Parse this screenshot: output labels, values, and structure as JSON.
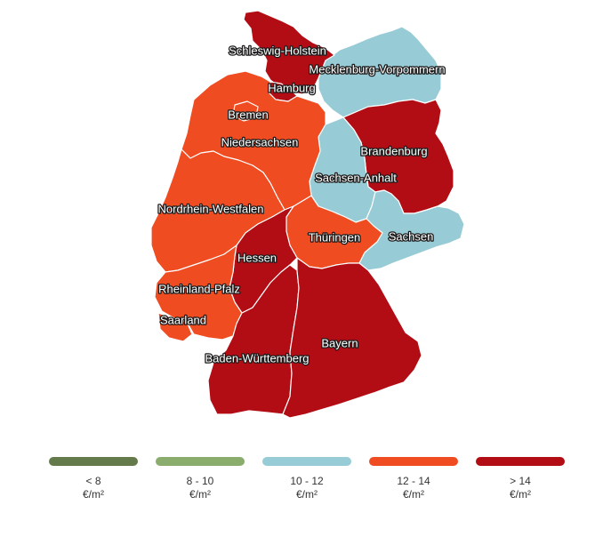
{
  "colors": {
    "lt8": "#647a4b",
    "8to10": "#8aad6e",
    "10to12": "#97cbd5",
    "12to14": "#f04c22",
    "gt14": "#b20d14"
  },
  "states": [
    {
      "id": "SH",
      "label": "Schleswig-Holstein",
      "cls": "gt14"
    },
    {
      "id": "HH",
      "label": "Hamburg",
      "cls": "gt14"
    },
    {
      "id": "MV",
      "label": "Mecklenburg-Vorpommern",
      "cls": "10to12"
    },
    {
      "id": "HB",
      "label": "Bremen",
      "cls": "12to14"
    },
    {
      "id": "NI",
      "label": "Niedersachsen",
      "cls": "12to14"
    },
    {
      "id": "BB",
      "label": "Brandenburg",
      "cls": "gt14"
    },
    {
      "id": "ST",
      "label": "Sachsen-Anhalt",
      "cls": "10to12"
    },
    {
      "id": "NW",
      "label": "Nordrhein-Westfalen",
      "cls": "12to14"
    },
    {
      "id": "TH",
      "label": "Thüringen",
      "cls": "12to14"
    },
    {
      "id": "SN",
      "label": "Sachsen",
      "cls": "10to12"
    },
    {
      "id": "HE",
      "label": "Hessen",
      "cls": "gt14"
    },
    {
      "id": "RP",
      "label": "Rheinland-Pfalz",
      "cls": "12to14"
    },
    {
      "id": "SL",
      "label": "Saarland",
      "cls": "12to14"
    },
    {
      "id": "BW",
      "label": "Baden-Württemberg",
      "cls": "gt14"
    },
    {
      "id": "BY",
      "label": "Bayern",
      "cls": "gt14"
    }
  ],
  "legend": [
    {
      "range": "< 8",
      "unit": "€/m²",
      "color": "#647a4b"
    },
    {
      "range": "8 - 10",
      "unit": "€/m²",
      "color": "#8aad6e"
    },
    {
      "range": "10 - 12",
      "unit": "€/m²",
      "color": "#97cbd5"
    },
    {
      "range": "12 - 14",
      "unit": "€/m²",
      "color": "#f04c22"
    },
    {
      "range": "> 14",
      "unit": "€/m²",
      "color": "#b20d14"
    }
  ]
}
